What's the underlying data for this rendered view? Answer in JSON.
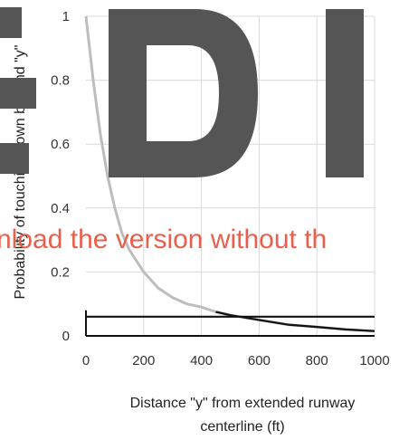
{
  "chart_data": {
    "type": "line",
    "xlabel": "Distance \"y\" from extended runway centerline (ft)",
    "xlabel_lines": [
      "Distance \"y\" from extended runway",
      "centerline (ft)"
    ],
    "ylabel": "Probability of touching down beyond \"y\"",
    "xlim": [
      0,
      1000
    ],
    "ylim": [
      0,
      1
    ],
    "x_ticks": [
      0,
      200,
      400,
      600,
      800,
      1000
    ],
    "y_ticks": [
      0,
      0.2,
      0.4,
      0.6,
      0.8,
      1
    ],
    "x_tick_labels": [
      "0",
      "200",
      "400",
      "600",
      "800",
      "1000"
    ],
    "y_tick_labels": [
      "0",
      "0.2",
      "0.4",
      "0.6",
      "0.8",
      "1"
    ],
    "grid": true,
    "series": [
      {
        "color": "#bdbdbd",
        "x": [
          0,
          25,
          50,
          75,
          100,
          125,
          150,
          200,
          250,
          300,
          350,
          400,
          450,
          500,
          600,
          700,
          800,
          900,
          1000
        ],
        "y": [
          1.0,
          0.8,
          0.63,
          0.5,
          0.4,
          0.32,
          0.27,
          0.2,
          0.15,
          0.12,
          0.1,
          0.09,
          0.075,
          0.065,
          0.05,
          0.035,
          0.028,
          0.02,
          0.015
        ]
      },
      {
        "color": "#111111",
        "x": [
          0,
          1000
        ],
        "y": [
          0.06,
          0.06
        ]
      },
      {
        "color": "#111111",
        "x": [
          450,
          500,
          600,
          700,
          800,
          900,
          1000
        ],
        "y": [
          0.075,
          0.065,
          0.05,
          0.035,
          0.028,
          0.02,
          0.015
        ]
      }
    ]
  },
  "watermark": {
    "letters": "EDI",
    "text": "nload the version without th",
    "color": "#e8604c"
  }
}
